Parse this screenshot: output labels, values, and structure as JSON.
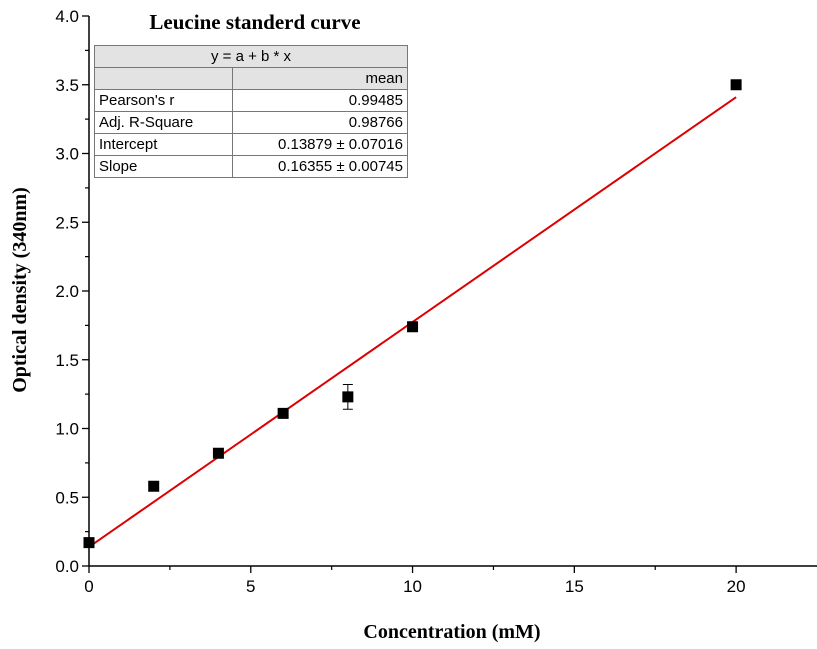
{
  "chart_data": {
    "type": "scatter",
    "title": "Leucine standerd curve",
    "xlabel": "Concentration (mM)",
    "ylabel": "Optical density (340nm)",
    "xlim": [
      0,
      22.5
    ],
    "ylim": [
      0,
      4.0
    ],
    "x_ticks": [
      0,
      5,
      10,
      15,
      20
    ],
    "y_ticks": [
      0.0,
      0.5,
      1.0,
      1.5,
      2.0,
      2.5,
      3.0,
      3.5,
      4.0
    ],
    "x_tick_labels": [
      "0",
      "5",
      "10",
      "15",
      "20"
    ],
    "y_tick_labels": [
      "0.0",
      "0.5",
      "1.0",
      "1.5",
      "2.0",
      "2.5",
      "3.0",
      "3.5",
      "4.0"
    ],
    "series": [
      {
        "marker": "square",
        "color": "#000000",
        "x": [
          0,
          2,
          4,
          6,
          8,
          10,
          20
        ],
        "y": [
          0.17,
          0.58,
          0.82,
          1.11,
          1.23,
          1.74,
          3.5
        ],
        "y_err": [
          0,
          0,
          0,
          0,
          0.09,
          0,
          0
        ]
      }
    ],
    "fit": {
      "color": "#dd0000",
      "intercept": 0.13879,
      "slope": 0.16355,
      "x_range": [
        0,
        20
      ]
    },
    "grid": false,
    "stats_table": {
      "equation": "y = a + b * x",
      "column_header": "mean",
      "rows": [
        {
          "label": "Pearson's r",
          "value": "0.99485"
        },
        {
          "label": "Adj. R-Square",
          "value": "0.98766"
        },
        {
          "label": "Intercept",
          "value": "0.13879 ± 0.07016"
        },
        {
          "label": "Slope",
          "value": "0.16355 ± 0.00745"
        }
      ]
    }
  }
}
